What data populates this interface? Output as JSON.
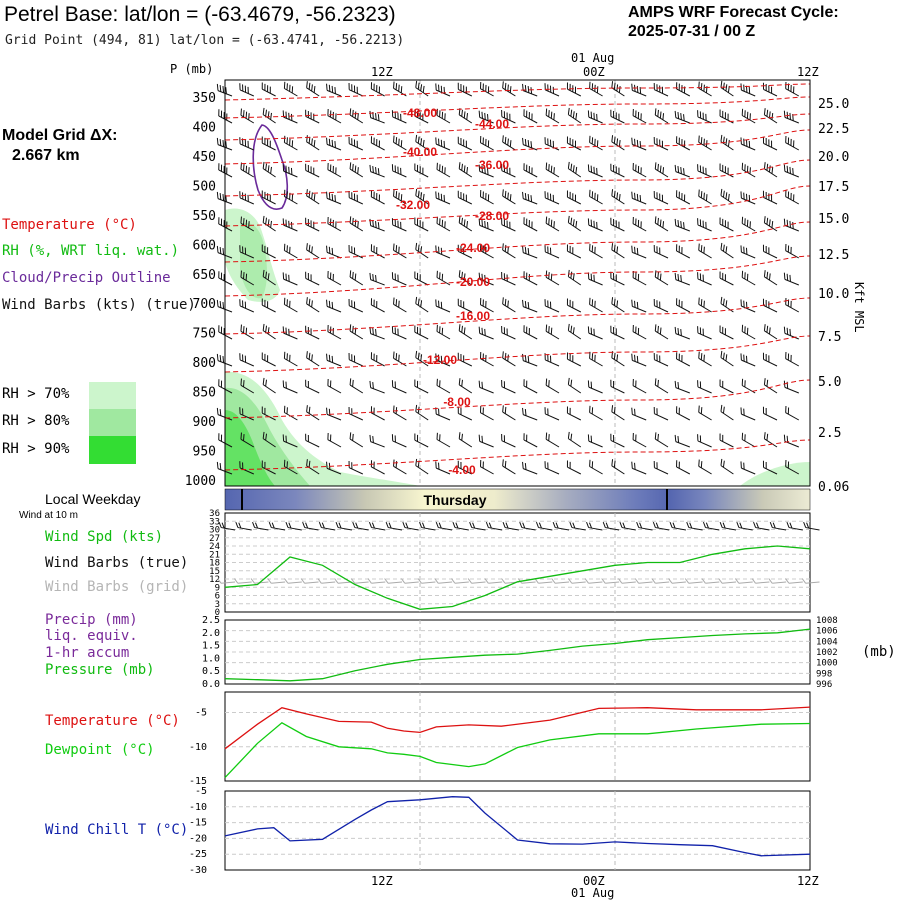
{
  "header": {
    "title": "Petrel Base:  lat/lon = (-63.4679, -56.2323)",
    "grid_point": "Grid Point (494, 81) lat/lon = (-63.4741, -56.2213)",
    "cycle_label": "AMPS WRF Forecast Cycle:",
    "cycle_value": "2025-07-31 / 00  Z"
  },
  "model_grid": {
    "label": "Model Grid ΔX:",
    "value": "2.667 km"
  },
  "left_legend": {
    "temperature": "Temperature (°C)",
    "rh": "RH (%, WRT liq. wat.)",
    "cloud": "Cloud/Precip Outline",
    "wind_barbs": "Wind Barbs (kts) (true)",
    "rh70": "RH > 70%",
    "rh80": "RH > 80%",
    "rh90": "RH > 90%"
  },
  "colors": {
    "temperature": "#dd1111",
    "cloud": "#6a2a9a",
    "rh70": "#ccf5cc",
    "rh80": "#a0e8a0",
    "rh90": "#33dd33",
    "wind": "#11bb11",
    "pressure": "#11bb11",
    "dewpoint": "#11cc11",
    "windchill": "#1122aa",
    "grid_barbs": "#aaaaaa",
    "precip": "#7a2a9a"
  },
  "time_axis": {
    "top_labels": [
      "12Z",
      "00Z",
      "12Z"
    ],
    "date_label": "01 Aug",
    "bottom_labels": [
      "12Z",
      "00Z",
      "12Z"
    ]
  },
  "weekday": {
    "label": "Local Weekday",
    "day": "Thursday",
    "wind_note": "Wind at 10 m"
  },
  "panels": {
    "wind": {
      "spd": "Wind Spd (kts)",
      "barbs_true": "Wind Barbs (true)",
      "barbs_grid": "Wind Barbs (grid)"
    },
    "precip": {
      "line1": "Precip (mm)",
      "line2": "liq. equiv.",
      "line3": "1-hr accum",
      "pressure": "Pressure (mb)",
      "units": "(mb)"
    },
    "temp": {
      "temperature": "Temperature (°C)",
      "dewpoint": "Dewpoint (°C)"
    },
    "chill": {
      "label": "Wind Chill T (°C)"
    }
  },
  "chart_data": [
    {
      "type": "line",
      "title": "",
      "x_range_hours": [
        0,
        36
      ],
      "yaxis_left_label": "P (mb)",
      "yaxis_left_ticks": [
        "350",
        "400",
        "450",
        "500",
        "550",
        "600",
        "650",
        "700",
        "750",
        "800",
        "850",
        "900",
        "950",
        "1000"
      ],
      "yaxis_right_label": "Kft MSL",
      "yaxis_right_ticks": [
        "25.0",
        "22.5",
        "20.0",
        "17.5",
        "15.0",
        "12.5",
        "10.0",
        "7.5",
        "5.0",
        "2.5",
        "0.06"
      ],
      "isotherm_labels": [
        "-48.00",
        "-44.00",
        "-40.00",
        "-36.00",
        "-32.00",
        "-28.00",
        "-24.00",
        "-20.00",
        "-16.00",
        "-12.00",
        "-8.00",
        "-4.00"
      ]
    },
    {
      "type": "line",
      "series": [
        {
          "name": "Wind Spd (kts)",
          "x": [
            0,
            2,
            4,
            6,
            8,
            10,
            12,
            14,
            16,
            18,
            20,
            22,
            24,
            26,
            28,
            30,
            32,
            34,
            36
          ],
          "values": [
            9,
            10,
            20,
            17,
            10,
            5,
            1,
            2,
            6,
            11,
            13,
            15,
            17,
            18,
            18,
            21,
            23,
            24,
            23
          ]
        }
      ],
      "yticks": [
        "36",
        "33",
        "30",
        "27",
        "24",
        "21",
        "18",
        "15",
        "12",
        "9",
        "6",
        "3",
        "0"
      ],
      "ylim": [
        0,
        36
      ]
    },
    {
      "type": "line",
      "series": [
        {
          "name": "Pressure (mb)",
          "x": [
            0,
            2,
            4,
            6,
            8,
            10,
            12,
            14,
            16,
            18,
            20,
            22,
            24,
            26,
            28,
            30,
            32,
            34,
            36
          ],
          "values": [
            997.0,
            996.8,
            996.6,
            997.0,
            998.5,
            999.7,
            1000.6,
            1001.0,
            1001.4,
            1001.6,
            1002.3,
            1003.1,
            1003.6,
            1004.3,
            1004.7,
            1005.1,
            1005.4,
            1005.6,
            1006.3
          ]
        }
      ],
      "yticks_left": [
        "2.5",
        "2.0",
        "1.5",
        "1.0",
        "0.5",
        "0.0"
      ],
      "yticks_right": [
        "1008",
        "1006",
        "1004",
        "1002",
        "1000",
        "998",
        "996"
      ],
      "ylim": [
        996,
        1008
      ]
    },
    {
      "type": "line",
      "series": [
        {
          "name": "Temperature (°C)",
          "x": [
            0,
            2,
            3.5,
            5,
            7,
            9,
            10,
            11,
            12,
            13,
            15,
            17,
            20,
            23,
            26,
            29,
            33,
            36
          ],
          "values": [
            -10.3,
            -6.7,
            -4.3,
            -5.2,
            -6.3,
            -6.4,
            -7.3,
            -7.7,
            -7.9,
            -7.1,
            -6.8,
            -7.0,
            -6.1,
            -4.4,
            -4.3,
            -4.6,
            -4.6,
            -4.2
          ]
        },
        {
          "name": "Dewpoint (°C)",
          "x": [
            0,
            2,
            3.5,
            5,
            7,
            9,
            10,
            11,
            12,
            13,
            15,
            16,
            18,
            20,
            23,
            26,
            29,
            33,
            36
          ],
          "values": [
            -14.5,
            -9.5,
            -6.5,
            -8.5,
            -10.0,
            -10.3,
            -10.9,
            -11.1,
            -11.4,
            -12.3,
            -12.9,
            -12.5,
            -10.1,
            -9.0,
            -8.1,
            -8.1,
            -7.4,
            -6.7,
            -6.6
          ]
        }
      ],
      "yticks": [
        "-5",
        "-10",
        "-15"
      ],
      "ylim": [
        -15,
        -2
      ]
    },
    {
      "type": "line",
      "series": [
        {
          "name": "Wind Chill T (°C)",
          "x": [
            0,
            2,
            3,
            4,
            6,
            8,
            9,
            10,
            12,
            14,
            15,
            16,
            18,
            20,
            22,
            24,
            26,
            28,
            30,
            32,
            33,
            36
          ],
          "values": [
            -19.2,
            -17.0,
            -16.6,
            -20.8,
            -20.3,
            -14.0,
            -11.0,
            -8.4,
            -7.8,
            -6.8,
            -7.0,
            -12.0,
            -20.5,
            -21.7,
            -21.8,
            -21.1,
            -21.6,
            -22.0,
            -22.3,
            -24.5,
            -25.5,
            -25.0
          ]
        }
      ],
      "yticks": [
        "-5",
        "-10",
        "-15",
        "-20",
        "-25",
        "-30"
      ],
      "ylim": [
        -30,
        -5
      ]
    }
  ]
}
